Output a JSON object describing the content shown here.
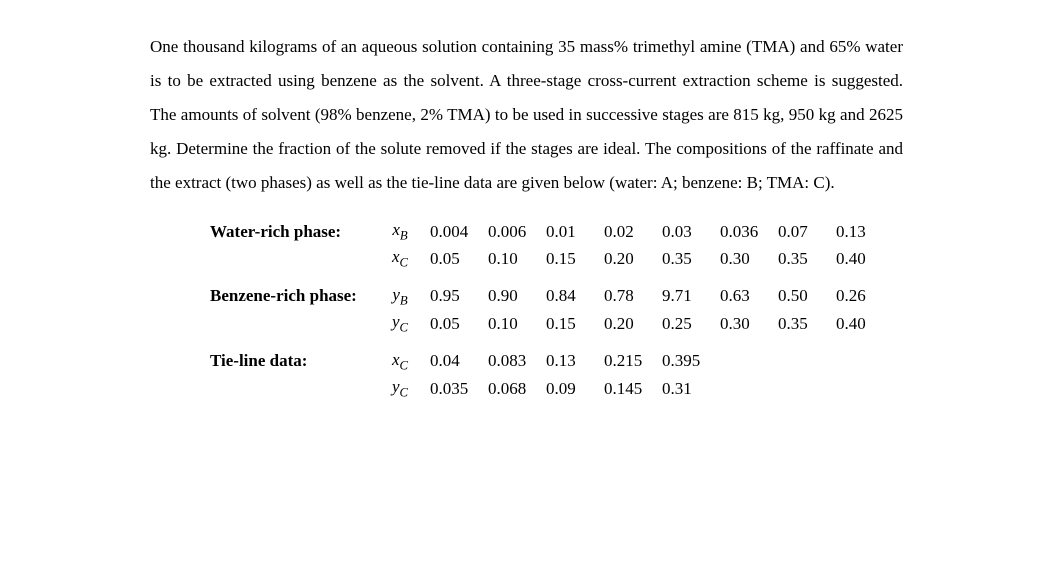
{
  "paragraph": "One thousand kilograms of an aqueous solution containing 35 mass% trimethyl amine (TMA) and 65% water is to be extracted using benzene as the solvent. A three-stage cross-current extraction scheme is suggested. The amounts of solvent (98% benzene, 2% TMA) to be used in successive stages are 815 kg, 950 kg and 2625 kg. Determine the fraction of the solute removed if the stages are ideal. The compositions of the raffinate and the extract (two phases) as well as the tie-line data are given below (water: A; benzene: B; TMA: C).",
  "tables": {
    "water_rich": {
      "label": "Water-rich phase:",
      "rows": [
        {
          "var": "x",
          "sub": "B",
          "values": [
            "0.004",
            "0.006",
            "0.01",
            "0.02",
            "0.03",
            "0.036",
            "0.07",
            "0.13"
          ]
        },
        {
          "var": "x",
          "sub": "C",
          "values": [
            "0.05",
            "0.10",
            "0.15",
            "0.20",
            "0.35",
            "0.30",
            "0.35",
            "0.40"
          ]
        }
      ]
    },
    "benzene_rich": {
      "label": "Benzene-rich phase:",
      "rows": [
        {
          "var": "y",
          "sub": "B",
          "values": [
            "0.95",
            "0.90",
            "0.84",
            "0.78",
            "9.71",
            "0.63",
            "0.50",
            "0.26"
          ]
        },
        {
          "var": "y",
          "sub": "C",
          "values": [
            "0.05",
            "0.10",
            "0.15",
            "0.20",
            "0.25",
            "0.30",
            "0.35",
            "0.40"
          ]
        }
      ]
    },
    "tie_line": {
      "label": "Tie-line data:",
      "rows": [
        {
          "var": "x",
          "sub": "C",
          "values": [
            "0.04",
            "0.083",
            "0.13",
            "0.215",
            "0.395"
          ]
        },
        {
          "var": "y",
          "sub": "C",
          "values": [
            "0.035",
            "0.068",
            "0.09",
            "0.145",
            "0.31"
          ]
        }
      ]
    }
  }
}
